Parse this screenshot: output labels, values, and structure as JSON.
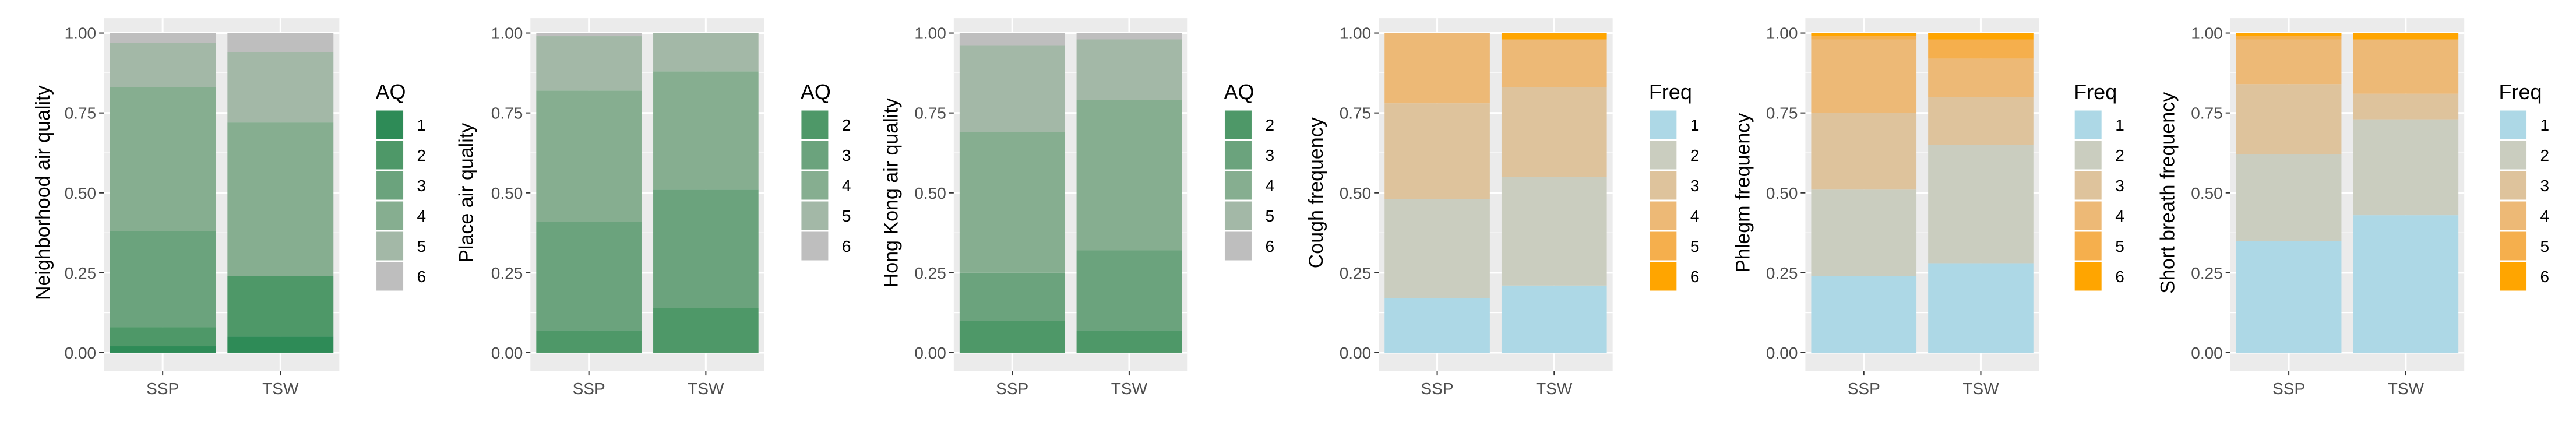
{
  "colors": {
    "panel_bg": "#EBEBEB",
    "grid": "#FFFFFF",
    "axis_text": "#4D4D4D",
    "title_text": "#000000",
    "aq": {
      "1": "#2E8B57",
      "2": "#4E9868",
      "3": "#6BA37D",
      "4": "#86AE90",
      "5": "#A3B8A7",
      "6": "#BEBEBE"
    },
    "freq": {
      "1": "#ADD8E6",
      "2": "#CACDBF",
      "3": "#DEC39C",
      "4": "#EDB976",
      "5": "#F5AF4D",
      "6": "#FFA500"
    }
  },
  "chart_data": [
    {
      "type": "bar",
      "stacked": true,
      "ylabel": "Neighborhood air quality",
      "xlabel": "",
      "categories": [
        "SSP",
        "TSW"
      ],
      "ylim": [
        0,
        1
      ],
      "yticks": [
        "0.00",
        "0.25",
        "0.50",
        "0.75",
        "1.00"
      ],
      "legend_title": "AQ",
      "legend_palette": "aq",
      "series": [
        {
          "name": "1",
          "values": [
            0.02,
            0.05
          ]
        },
        {
          "name": "2",
          "values": [
            0.06,
            0.19
          ]
        },
        {
          "name": "3",
          "values": [
            0.3,
            0.0
          ]
        },
        {
          "name": "4",
          "values": [
            0.45,
            0.48
          ]
        },
        {
          "name": "5",
          "values": [
            0.14,
            0.22
          ]
        },
        {
          "name": "6",
          "values": [
            0.03,
            0.06
          ]
        }
      ]
    },
    {
      "type": "bar",
      "stacked": true,
      "ylabel": "Place air quality",
      "xlabel": "",
      "categories": [
        "SSP",
        "TSW"
      ],
      "ylim": [
        0,
        1
      ],
      "yticks": [
        "0.00",
        "0.25",
        "0.50",
        "0.75",
        "1.00"
      ],
      "legend_title": "AQ",
      "legend_palette": "aq",
      "series": [
        {
          "name": "2",
          "values": [
            0.07,
            0.14
          ]
        },
        {
          "name": "3",
          "values": [
            0.34,
            0.37
          ]
        },
        {
          "name": "4",
          "values": [
            0.41,
            0.37
          ]
        },
        {
          "name": "5",
          "values": [
            0.17,
            0.12
          ]
        },
        {
          "name": "6",
          "values": [
            0.01,
            0.0
          ]
        }
      ]
    },
    {
      "type": "bar",
      "stacked": true,
      "ylabel": "Hong Kong air quality",
      "xlabel": "",
      "categories": [
        "SSP",
        "TSW"
      ],
      "ylim": [
        0,
        1
      ],
      "yticks": [
        "0.00",
        "0.25",
        "0.50",
        "0.75",
        "1.00"
      ],
      "legend_title": "AQ",
      "legend_palette": "aq",
      "series": [
        {
          "name": "2",
          "values": [
            0.1,
            0.07
          ]
        },
        {
          "name": "3",
          "values": [
            0.15,
            0.25
          ]
        },
        {
          "name": "4",
          "values": [
            0.44,
            0.47
          ]
        },
        {
          "name": "5",
          "values": [
            0.27,
            0.19
          ]
        },
        {
          "name": "6",
          "values": [
            0.04,
            0.02
          ]
        }
      ]
    },
    {
      "type": "bar",
      "stacked": true,
      "ylabel": "Cough frequency",
      "xlabel": "",
      "categories": [
        "SSP",
        "TSW"
      ],
      "ylim": [
        0,
        1
      ],
      "yticks": [
        "0.00",
        "0.25",
        "0.50",
        "0.75",
        "1.00"
      ],
      "legend_title": "Freq",
      "legend_palette": "freq",
      "series": [
        {
          "name": "1",
          "values": [
            0.17,
            0.21
          ]
        },
        {
          "name": "2",
          "values": [
            0.31,
            0.34
          ]
        },
        {
          "name": "3",
          "values": [
            0.3,
            0.28
          ]
        },
        {
          "name": "4",
          "values": [
            0.22,
            0.15
          ]
        },
        {
          "name": "5",
          "values": [
            0.0,
            0.0
          ]
        },
        {
          "name": "6",
          "values": [
            0.0,
            0.02
          ]
        }
      ]
    },
    {
      "type": "bar",
      "stacked": true,
      "ylabel": "Phlegm frequency",
      "xlabel": "",
      "categories": [
        "SSP",
        "TSW"
      ],
      "ylim": [
        0,
        1
      ],
      "yticks": [
        "0.00",
        "0.25",
        "0.50",
        "0.75",
        "1.00"
      ],
      "legend_title": "Freq",
      "legend_palette": "freq",
      "series": [
        {
          "name": "1",
          "values": [
            0.24,
            0.28
          ]
        },
        {
          "name": "2",
          "values": [
            0.27,
            0.37
          ]
        },
        {
          "name": "3",
          "values": [
            0.24,
            0.15
          ]
        },
        {
          "name": "4",
          "values": [
            0.23,
            0.12
          ]
        },
        {
          "name": "5",
          "values": [
            0.01,
            0.06
          ]
        },
        {
          "name": "6",
          "values": [
            0.01,
            0.02
          ]
        }
      ]
    },
    {
      "type": "bar",
      "stacked": true,
      "ylabel": "Short breath frequency",
      "xlabel": "",
      "categories": [
        "SSP",
        "TSW"
      ],
      "ylim": [
        0,
        1
      ],
      "yticks": [
        "0.00",
        "0.25",
        "0.50",
        "0.75",
        "1.00"
      ],
      "legend_title": "Freq",
      "legend_palette": "freq",
      "series": [
        {
          "name": "1",
          "values": [
            0.35,
            0.43
          ]
        },
        {
          "name": "2",
          "values": [
            0.27,
            0.3
          ]
        },
        {
          "name": "3",
          "values": [
            0.22,
            0.08
          ]
        },
        {
          "name": "4",
          "values": [
            0.14,
            0.17
          ]
        },
        {
          "name": "5",
          "values": [
            0.01,
            0.0
          ]
        },
        {
          "name": "6",
          "values": [
            0.01,
            0.02
          ]
        }
      ]
    }
  ]
}
